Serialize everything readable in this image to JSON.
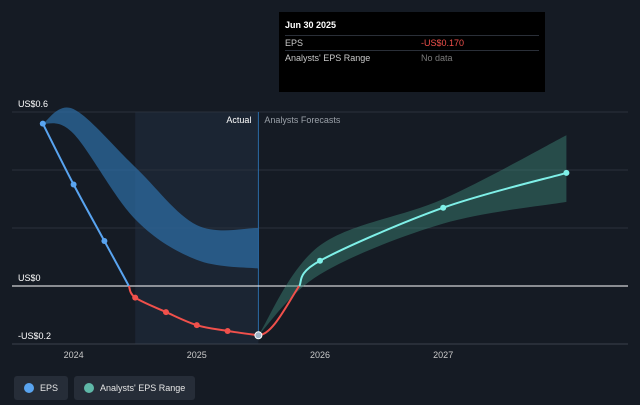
{
  "tooltip": {
    "date": "Jun 30 2025",
    "eps_label": "EPS",
    "eps_value": "-US$0.170",
    "range_label": "Analysts' EPS Range",
    "range_value": "No data"
  },
  "legend": {
    "eps_label": "EPS",
    "range_label": "Analysts' EPS Range"
  },
  "colors": {
    "background": "#151b24",
    "eps_positive": "#59a4f0",
    "eps_negative": "#f0504b",
    "forecast": "#7ff0e8",
    "forecast_band": "#3e8a7a",
    "actual_band": "#2d6fa8"
  },
  "chart_data": {
    "type": "line",
    "title": "EPS",
    "section_labels": {
      "actual": "Actual",
      "forecast": "Analysts Forecasts"
    },
    "y_ticks": [
      {
        "value": 0.6,
        "label": "US$0.6"
      },
      {
        "value": 0,
        "label": "US$0"
      },
      {
        "value": -0.2,
        "label": "-US$0.2"
      }
    ],
    "x_ticks": [
      {
        "value": 2024.0,
        "label": "2024"
      },
      {
        "value": 2025.0,
        "label": "2025"
      },
      {
        "value": 2026.0,
        "label": "2026"
      },
      {
        "value": 2027.0,
        "label": "2027"
      }
    ],
    "xlim": [
      2023.5,
      2028.5
    ],
    "ylim": [
      -0.2,
      0.6
    ],
    "actual_end": 2025.5,
    "shaded_start": 2024.5,
    "eps_actual": [
      {
        "x": 2023.75,
        "y": 0.56
      },
      {
        "x": 2024.0,
        "y": 0.35
      },
      {
        "x": 2024.25,
        "y": 0.155
      },
      {
        "x": 2024.5,
        "y": -0.04
      },
      {
        "x": 2024.75,
        "y": -0.09
      },
      {
        "x": 2025.0,
        "y": -0.135
      },
      {
        "x": 2025.25,
        "y": -0.155
      },
      {
        "x": 2025.5,
        "y": -0.17
      }
    ],
    "eps_forecast": [
      {
        "x": 2025.5,
        "y": -0.17
      },
      {
        "x": 2026.0,
        "y": 0.087
      },
      {
        "x": 2027.0,
        "y": 0.27
      },
      {
        "x": 2028.0,
        "y": 0.39
      }
    ],
    "forecast_range": [
      {
        "x": 2025.5,
        "low": -0.17,
        "high": -0.17
      },
      {
        "x": 2026.0,
        "low": 0.04,
        "high": 0.14
      },
      {
        "x": 2027.0,
        "low": 0.215,
        "high": 0.3
      },
      {
        "x": 2028.0,
        "low": 0.29,
        "high": 0.52
      }
    ],
    "actual_range": [
      {
        "x": 2023.75,
        "low": 0.56,
        "high": 0.56
      },
      {
        "x": 2024.0,
        "low": 0.525,
        "high": 0.61
      },
      {
        "x": 2024.5,
        "low": 0.23,
        "high": 0.41
      },
      {
        "x": 2025.0,
        "low": 0.09,
        "high": 0.21
      },
      {
        "x": 2025.5,
        "low": 0.06,
        "high": 0.2
      }
    ]
  }
}
